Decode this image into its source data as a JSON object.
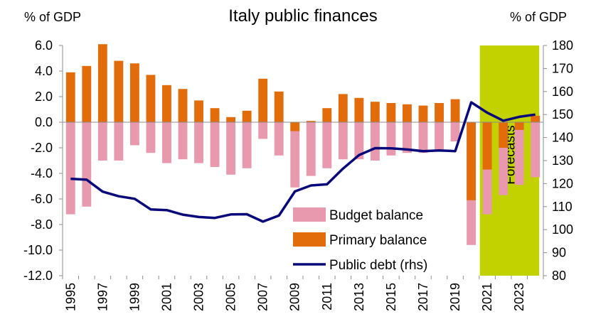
{
  "chart_data": {
    "type": "bar",
    "title": "Italy public finances",
    "left_axis_unit": "% of GDP",
    "right_axis_unit": "% of GDP",
    "ylim_left": [
      -12,
      6
    ],
    "ylim_right": [
      80,
      180
    ],
    "left_ticks": [
      "6.0",
      "4.0",
      "2.0",
      "0.0",
      "-2.0",
      "-4.0",
      "-6.0",
      "-8.0",
      "-10.0",
      "-12.0"
    ],
    "right_ticks": [
      "180",
      "170",
      "160",
      "150",
      "140",
      "130",
      "120",
      "110",
      "100",
      "90",
      "80"
    ],
    "categories": [
      1995,
      1996,
      1997,
      1998,
      1999,
      2000,
      2001,
      2002,
      2003,
      2004,
      2005,
      2006,
      2007,
      2008,
      2009,
      2010,
      2011,
      2012,
      2013,
      2014,
      2015,
      2016,
      2017,
      2018,
      2019,
      2020,
      2021,
      2022,
      2023,
      2024
    ],
    "x_tick_labels": [
      "1995",
      "1997",
      "1999",
      "2001",
      "2003",
      "2005",
      "2007",
      "2009",
      "2011",
      "2013",
      "2015",
      "2017",
      "2019",
      "2021",
      "2023"
    ],
    "series": [
      {
        "name": "Budget balance",
        "type": "bar",
        "color": "#e899ad",
        "axis": "left",
        "values": [
          -7.2,
          -6.6,
          -3.0,
          -3.0,
          -1.8,
          -2.4,
          -3.2,
          -2.9,
          -3.2,
          -3.5,
          -4.1,
          -3.6,
          -1.3,
          -2.6,
          -5.1,
          -4.2,
          -3.6,
          -2.9,
          -2.9,
          -3.0,
          -2.6,
          -2.4,
          -2.4,
          -2.2,
          -1.5,
          -9.6,
          -7.2,
          -5.7,
          -4.9,
          -4.3
        ]
      },
      {
        "name": "Primary balance",
        "type": "bar",
        "color": "#e36c0a",
        "axis": "left",
        "values": [
          3.9,
          4.4,
          6.1,
          4.8,
          4.6,
          3.7,
          2.9,
          2.6,
          1.7,
          1.1,
          0.4,
          0.9,
          3.4,
          2.4,
          -0.7,
          0.1,
          1.1,
          2.2,
          1.9,
          1.6,
          1.5,
          1.4,
          1.3,
          1.5,
          1.8,
          -6.1,
          -3.7,
          -2.0,
          -0.6,
          0.5
        ]
      },
      {
        "name": "Public debt (rhs)",
        "type": "line",
        "color": "#08087a",
        "axis": "right",
        "values": [
          122.1,
          121.7,
          116.5,
          114.5,
          113.4,
          108.8,
          108.5,
          106.5,
          105.5,
          105.1,
          106.6,
          106.7,
          103.5,
          106.1,
          116.6,
          119.2,
          119.7,
          126.5,
          132.4,
          135.4,
          135.3,
          134.8,
          134.1,
          134.4,
          134.1,
          155.3,
          150.8,
          147.3,
          149.0,
          150.0
        ]
      }
    ],
    "shaded_region": {
      "from": 2021,
      "to": 2024,
      "label": "Forecasts",
      "color": "#c2d100"
    },
    "legend": {
      "position": "bottom-center"
    },
    "grid": false
  }
}
